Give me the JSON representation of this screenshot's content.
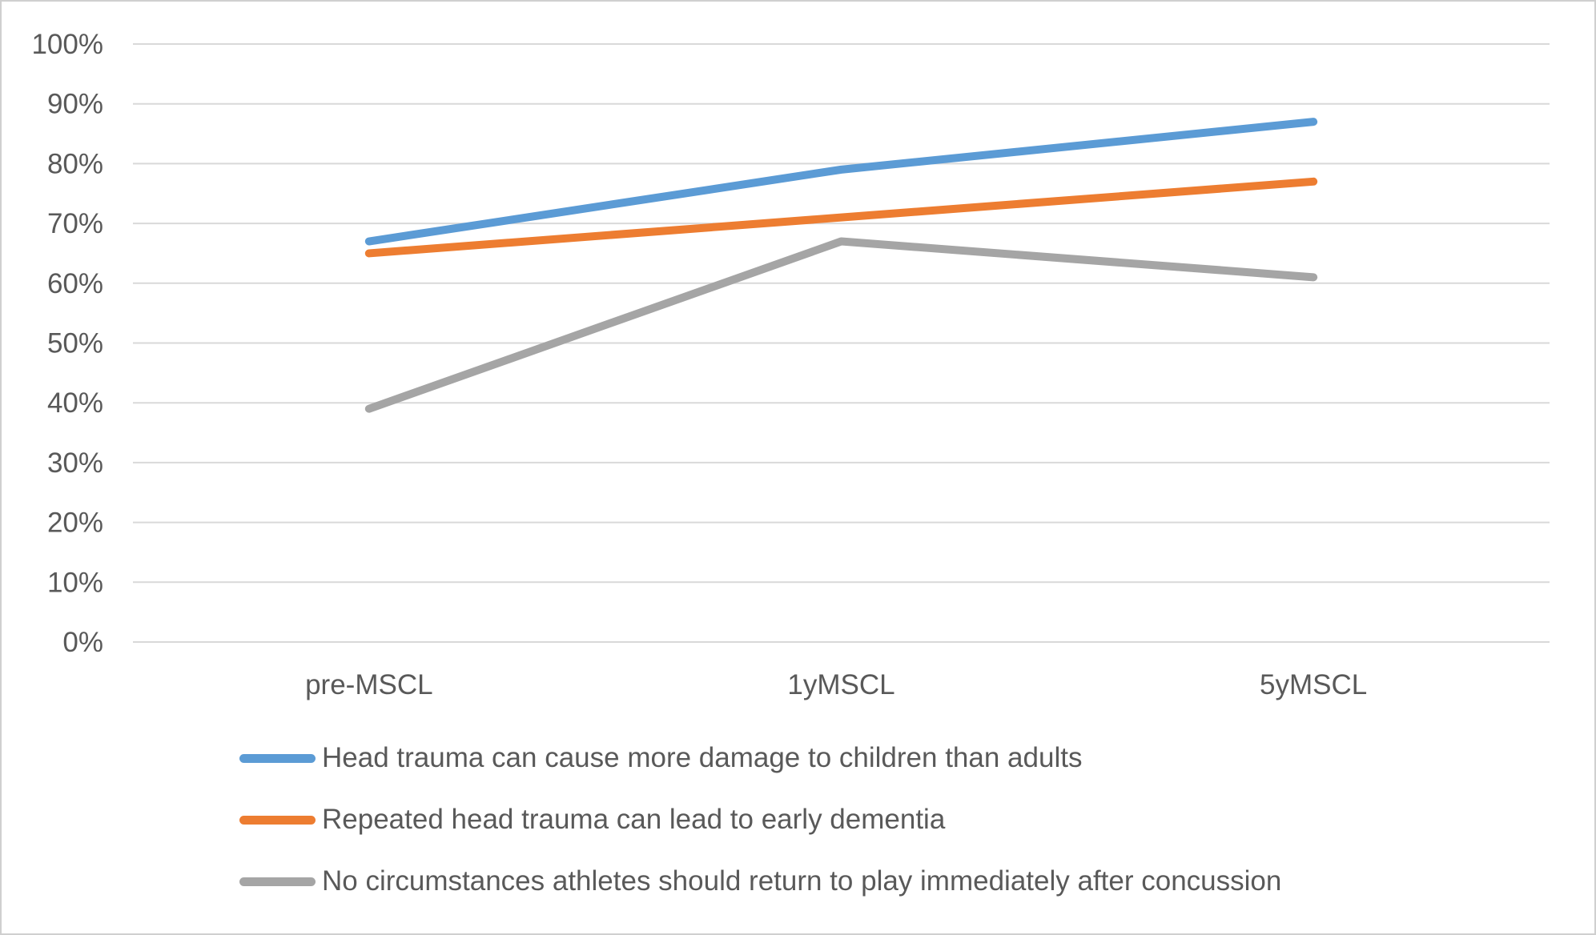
{
  "chart_data": {
    "type": "line",
    "title": "",
    "xlabel": "",
    "ylabel": "",
    "categories": [
      "pre-MSCL",
      "1yMSCL",
      "5yMSCL"
    ],
    "series": [
      {
        "name": "Head trauma can cause more damage to children than adults",
        "color": "#5B9BD5",
        "values": [
          67,
          79,
          87
        ]
      },
      {
        "name": "Repeated head trauma can lead to early dementia",
        "color": "#ED7D31",
        "values": [
          65,
          71,
          77
        ]
      },
      {
        "name": "No circumstances athletes should return to play immediately after concussion",
        "color": "#A5A5A5",
        "values": [
          39,
          67,
          61
        ]
      }
    ],
    "ylim": [
      0,
      100
    ],
    "ytick_step": 10,
    "ytick_suffix": "%",
    "ytick_labels": [
      "0%",
      "10%",
      "20%",
      "30%",
      "40%",
      "50%",
      "60%",
      "70%",
      "80%",
      "90%",
      "100%"
    ],
    "grid": true,
    "legend_position": "bottom-left"
  },
  "colors": {
    "text": "#595959",
    "gridline": "#D9D9D9",
    "background": "#FFFFFF",
    "border": "#CFCFCF"
  }
}
